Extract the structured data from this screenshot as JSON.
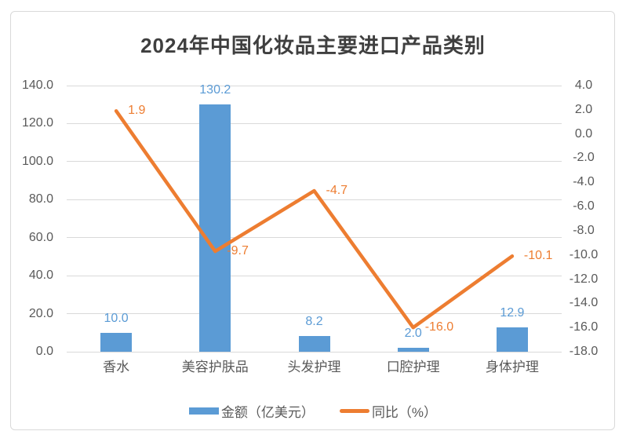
{
  "title": "2024年中国化妆品主要进口产品类别",
  "colors": {
    "bar": "#5B9BD5",
    "line": "#ED7D31",
    "grid": "#D9D9D9",
    "axis_text": "#595959",
    "title_text": "#3F3F3F",
    "frame_border": "#D9D9D9",
    "background": "#FFFFFF"
  },
  "chart_data": {
    "type": "combo-bar-line",
    "title": "2024年中国化妆品主要进口产品类别",
    "categories": [
      "香水",
      "美容护肤品",
      "头发护理",
      "口腔护理",
      "身体护理"
    ],
    "series": [
      {
        "name": "金额（亿美元）",
        "chart_type": "bar",
        "axis": "left",
        "color": "#5B9BD5",
        "values": [
          10.0,
          130.2,
          8.2,
          2.0,
          12.9
        ],
        "labels": [
          "10.0",
          "130.2",
          "8.2",
          "2.0",
          "12.9"
        ]
      },
      {
        "name": "同比（%）",
        "chart_type": "line",
        "axis": "right",
        "color": "#ED7D31",
        "values": [
          1.9,
          -9.7,
          -4.7,
          -16.0,
          -10.1
        ],
        "labels": [
          "1.9",
          "-9.7",
          "-4.7",
          "-16.0",
          "-10.1"
        ]
      }
    ],
    "left_axis": {
      "min": 0,
      "max": 140,
      "step": 20,
      "tick_labels_top_to_bottom": [
        "140.0",
        "120.0",
        "100.0",
        "80.0",
        "60.0",
        "40.0",
        "20.0",
        "0.0"
      ]
    },
    "right_axis": {
      "min": -18,
      "max": 4,
      "step": 2,
      "tick_labels_top_to_bottom": [
        "4.0",
        "2.0",
        "0.0",
        "-2.0",
        "-4.0",
        "-6.0",
        "-8.0",
        "-10.0",
        "-12.0",
        "-14.0",
        "-16.0",
        "-18.0"
      ]
    },
    "grid": true,
    "legend_position": "bottom",
    "legend": [
      {
        "label": "金额（亿美元）",
        "swatch": "bar"
      },
      {
        "label": "同比（%）",
        "swatch": "line"
      }
    ]
  }
}
